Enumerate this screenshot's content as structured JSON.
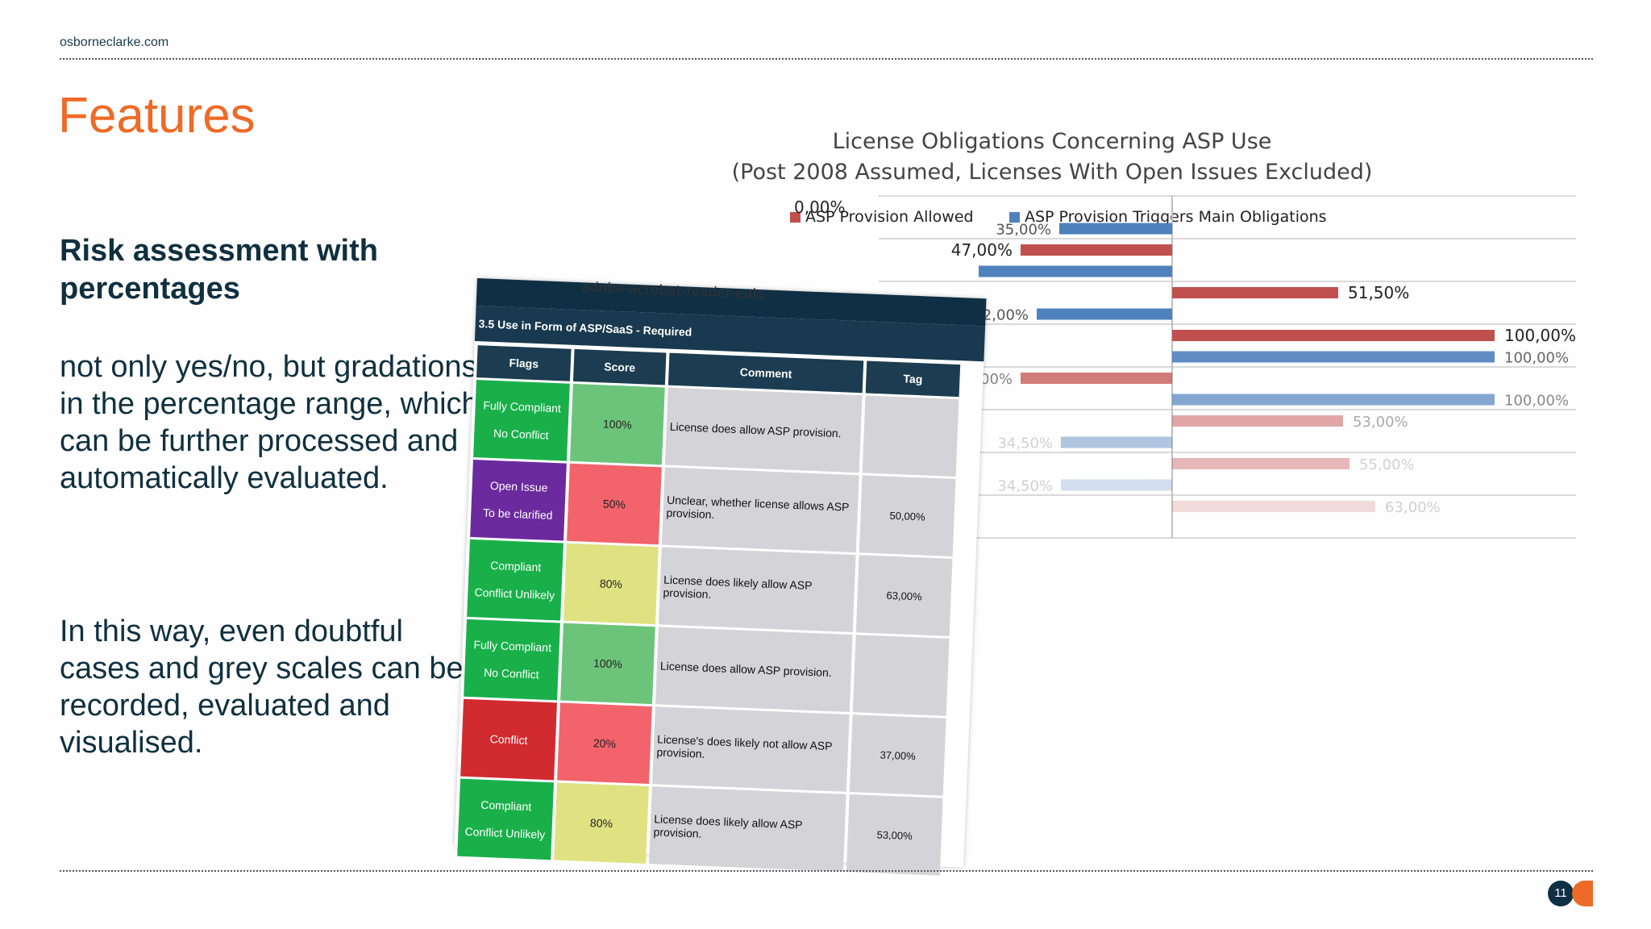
{
  "slide": {
    "site": "osborneclarke.com",
    "title": "Features",
    "subheading": "Risk assessment with percentages",
    "paragraph1": "not only yes/no, but gradations in the percentage range, which can be further processed and automatically evaluated.",
    "paragraph2": "In this way, even doubtful cases and grey scales can be recorded, evaluated and visualised.",
    "page_number": "11"
  },
  "colors": {
    "accent": "#ee6a26",
    "navy": "#0f2f44",
    "allowed": "#c0504d",
    "triggers": "#4f81bd"
  },
  "chart_data": {
    "type": "bar",
    "orientation": "horizontal-diverging",
    "title_line1": "License Obligations Concerning ASP Use",
    "title_line2": "(Post 2008 Assumed, Licenses With Open Issues Excluded)",
    "legend": [
      "ASP Provision Allowed",
      "ASP Provision Triggers Main Obligations"
    ],
    "series": [
      {
        "name": "ASP Provision Allowed",
        "color": "#c0504d"
      },
      {
        "name": "ASP Provision Triggers Main Obligations",
        "color": "#4f81bd"
      }
    ],
    "bars": [
      {
        "series": 0,
        "label": "0,00%",
        "value": 0,
        "direction": "left",
        "opacity": 1
      },
      {
        "series": 1,
        "label": "35,00%",
        "value": 35,
        "direction": "left",
        "opacity": 1
      },
      {
        "series": 0,
        "label": "47,00%",
        "value": 47,
        "direction": "left",
        "opacity": 1
      },
      {
        "series": 1,
        "label": "",
        "value": 100,
        "direction": "left",
        "opacity": 1
      },
      {
        "series": 0,
        "label": "51,50%",
        "value": 51.5,
        "direction": "right",
        "opacity": 1
      },
      {
        "series": 1,
        "label": "42,00%",
        "value": 42,
        "direction": "left",
        "opacity": 1
      },
      {
        "series": 0,
        "label": "100,00%",
        "value": 100,
        "direction": "right",
        "opacity": 1
      },
      {
        "series": 1,
        "label": "100,00%",
        "value": 100,
        "direction": "right",
        "opacity": 0.9
      },
      {
        "series": 0,
        "label": "47,00%",
        "value": 47,
        "direction": "left",
        "opacity": 0.75
      },
      {
        "series": 1,
        "label": "100,00%",
        "value": 100,
        "direction": "right",
        "opacity": 0.7
      },
      {
        "series": 0,
        "label": "53,00%",
        "value": 53,
        "direction": "right",
        "opacity": 0.5
      },
      {
        "series": 1,
        "label": "34,50%",
        "value": 34.5,
        "direction": "left",
        "opacity": 0.45
      },
      {
        "series": 0,
        "label": "55,00%",
        "value": 55,
        "direction": "right",
        "opacity": 0.4
      },
      {
        "series": 1,
        "label": "34,50%",
        "value": 34.5,
        "direction": "left",
        "opacity": 0.25
      },
      {
        "series": 0,
        "label": "63,00%",
        "value": 63,
        "direction": "right",
        "opacity": 0.2
      }
    ],
    "xlim": [
      -100,
      100
    ]
  },
  "sheet": {
    "peek_text": "adobe-acrobat-reader-eula",
    "caption": "3.5 Use in Form of ASP/SaaS - Required",
    "headers": [
      "Flags",
      "Score",
      "Comment",
      "Tag"
    ],
    "rows": [
      {
        "flag1": "Fully Compliant",
        "flag2": "No Conflict",
        "flag_color": "#19b04a",
        "score": "100%",
        "score_color": "#6cc47a",
        "comment": "License does allow ASP provision.",
        "tag": ""
      },
      {
        "flag1": "Open Issue",
        "flag2": "To be clarified",
        "flag_color": "#6b2a9e",
        "score": "50%",
        "score_color": "#f2636b",
        "comment": "Unclear, whether license allows ASP provision.",
        "tag": "50,00%"
      },
      {
        "flag1": "Compliant",
        "flag2": "Conflict Unlikely",
        "flag_color": "#19b04a",
        "score": "80%",
        "score_color": "#e0e282",
        "comment": "License does likely allow ASP provision.",
        "tag": "63,00%"
      },
      {
        "flag1": "Fully Compliant",
        "flag2": "No Conflict",
        "flag_color": "#19b04a",
        "score": "100%",
        "score_color": "#6cc47a",
        "comment": "License does allow ASP provision.",
        "tag": ""
      },
      {
        "flag1": "Conflict",
        "flag2": "",
        "flag_color": "#d12a2f",
        "score": "20%",
        "score_color": "#f2636b",
        "comment": "License's does likely not allow ASP provision.",
        "tag": "37,00%"
      },
      {
        "flag1": "Compliant",
        "flag2": "Conflict Unlikely",
        "flag_color": "#19b04a",
        "score": "80%",
        "score_color": "#e0e282",
        "comment": "License does likely allow ASP provision.",
        "tag": "53,00%"
      }
    ]
  }
}
